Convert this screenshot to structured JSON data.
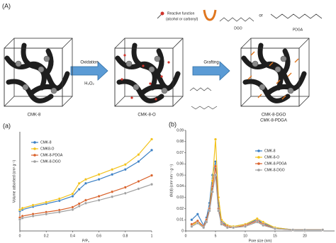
{
  "scheme": {
    "panel_label": "(A)",
    "reactive_label": [
      "Reactive function",
      "(alcohol or carbonyl)"
    ],
    "dgo_label": "DGO",
    "or_label": "or",
    "pdga_label": "PDGA",
    "step1": "Oxidation",
    "reagent": "H₂O₂",
    "step2": "Grafting",
    "materials": [
      "CMK-8",
      "CMK-8-O",
      "CMK-8-DGO",
      "CMK-8-PDGA"
    ]
  },
  "chart_data": [
    {
      "type": "line",
      "panel_label": "(a)",
      "xlabel": "P/P₀",
      "ylabel": "Volume adsorbed (cm³ g⁻¹)",
      "x": [
        0,
        0.02,
        0.1,
        0.2,
        0.3,
        0.4,
        0.45,
        0.5,
        0.6,
        0.7,
        0.8,
        0.9,
        1
      ],
      "xlim": [
        0,
        1
      ],
      "xticks": [
        0,
        0.2,
        0.4,
        0.6,
        0.8,
        1
      ],
      "ylim": [
        0,
        1000
      ],
      "grid": false,
      "legend": "upper left",
      "series": [
        {
          "name": "CMK-8",
          "color": "#3a7fc4",
          "values": [
            200,
            215,
            245,
            275,
            305,
            350,
            420,
            480,
            520,
            570,
            620,
            700,
            815
          ]
        },
        {
          "name": "CMK8-O",
          "color": "#f2c21b",
          "values": [
            215,
            230,
            260,
            290,
            325,
            375,
            480,
            520,
            570,
            620,
            670,
            770,
            925
          ]
        },
        {
          "name": "CMK-8-PDGA",
          "color": "#d9622b",
          "values": [
            135,
            150,
            170,
            190,
            210,
            240,
            275,
            310,
            350,
            395,
            440,
            500,
            560
          ]
        },
        {
          "name": "CMK-8-DGO",
          "color": "#a0a0a0",
          "values": [
            115,
            130,
            150,
            170,
            190,
            215,
            250,
            280,
            310,
            345,
            380,
            425,
            470
          ]
        }
      ]
    },
    {
      "type": "line",
      "panel_label": "(b)",
      "xlabel": "Pore size (nm)",
      "ylabel": "dV(d) (cm³ nm⁻¹ g⁻¹)",
      "x": [
        1,
        2,
        3,
        3.5,
        4,
        4.5,
        5,
        5.5,
        6,
        7,
        8,
        10,
        12,
        13,
        15,
        18,
        20,
        23
      ],
      "xlim": [
        0,
        25
      ],
      "xticks": [
        0,
        5,
        10,
        15,
        20
      ],
      "ylim": [
        0,
        0.09
      ],
      "yticks": [
        0,
        0.01,
        0.02,
        0.03,
        0.04,
        0.05,
        0.06,
        0.07,
        0.08,
        0.09
      ],
      "grid": false,
      "legend": "upper right",
      "series": [
        {
          "name": "CMK-8",
          "color": "#3a7fc4",
          "values": [
            0.01,
            0.015,
            0.005,
            0.012,
            0.025,
            0.05,
            0.062,
            0.025,
            0.008,
            0.005,
            0.004,
            0.006,
            0.01,
            0.007,
            0.003,
            0.001,
            0.001,
            0.001
          ]
        },
        {
          "name": "CMK-8-O",
          "color": "#f2c21b",
          "values": [
            0.005,
            0.008,
            0.004,
            0.01,
            0.02,
            0.045,
            0.082,
            0.03,
            0.01,
            0.005,
            0.004,
            0.006,
            0.011,
            0.008,
            0.003,
            0.001,
            0.001,
            0.001
          ]
        },
        {
          "name": "CMK-8-PDGA",
          "color": "#d9622b",
          "values": [
            0.006,
            0.009,
            0.004,
            0.01,
            0.02,
            0.04,
            0.058,
            0.02,
            0.007,
            0.004,
            0.003,
            0.005,
            0.009,
            0.006,
            0.002,
            0.001,
            0.001,
            0.001
          ]
        },
        {
          "name": "CMK-8-DGO",
          "color": "#a0a0a0",
          "values": [
            0.004,
            0.007,
            0.003,
            0.008,
            0.018,
            0.035,
            0.05,
            0.018,
            0.006,
            0.003,
            0.003,
            0.004,
            0.008,
            0.005,
            0.002,
            0.001,
            0.001,
            0.001
          ]
        }
      ]
    }
  ]
}
